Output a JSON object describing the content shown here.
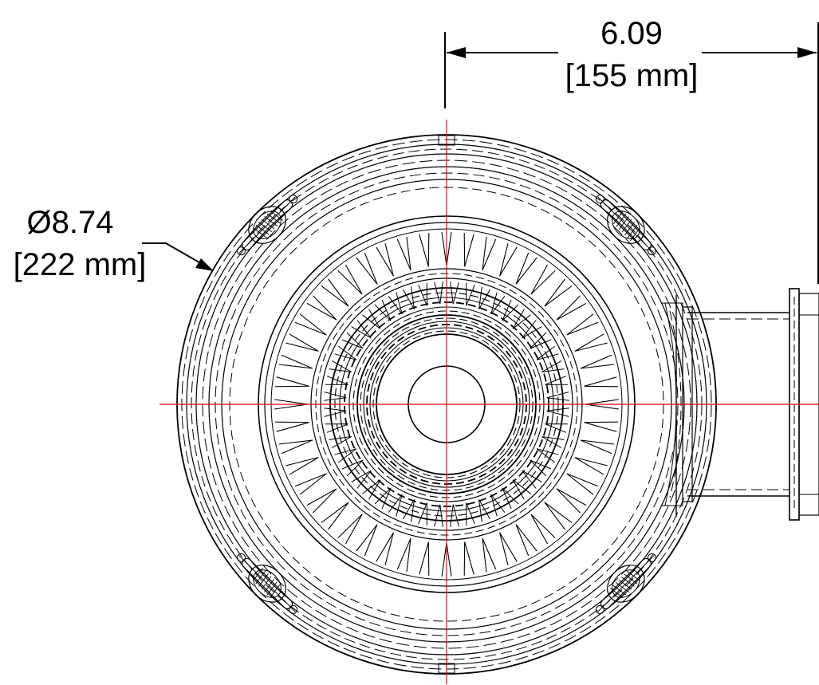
{
  "dimensions": {
    "width_dim": {
      "value": "6.09",
      "metric": "[155 mm]"
    },
    "diameter_dim": {
      "value": "Ø8.74",
      "metric": "[222 mm]"
    }
  },
  "colors": {
    "linework": "#000000",
    "centerline": "#ff0000",
    "background": "#ffffff"
  }
}
